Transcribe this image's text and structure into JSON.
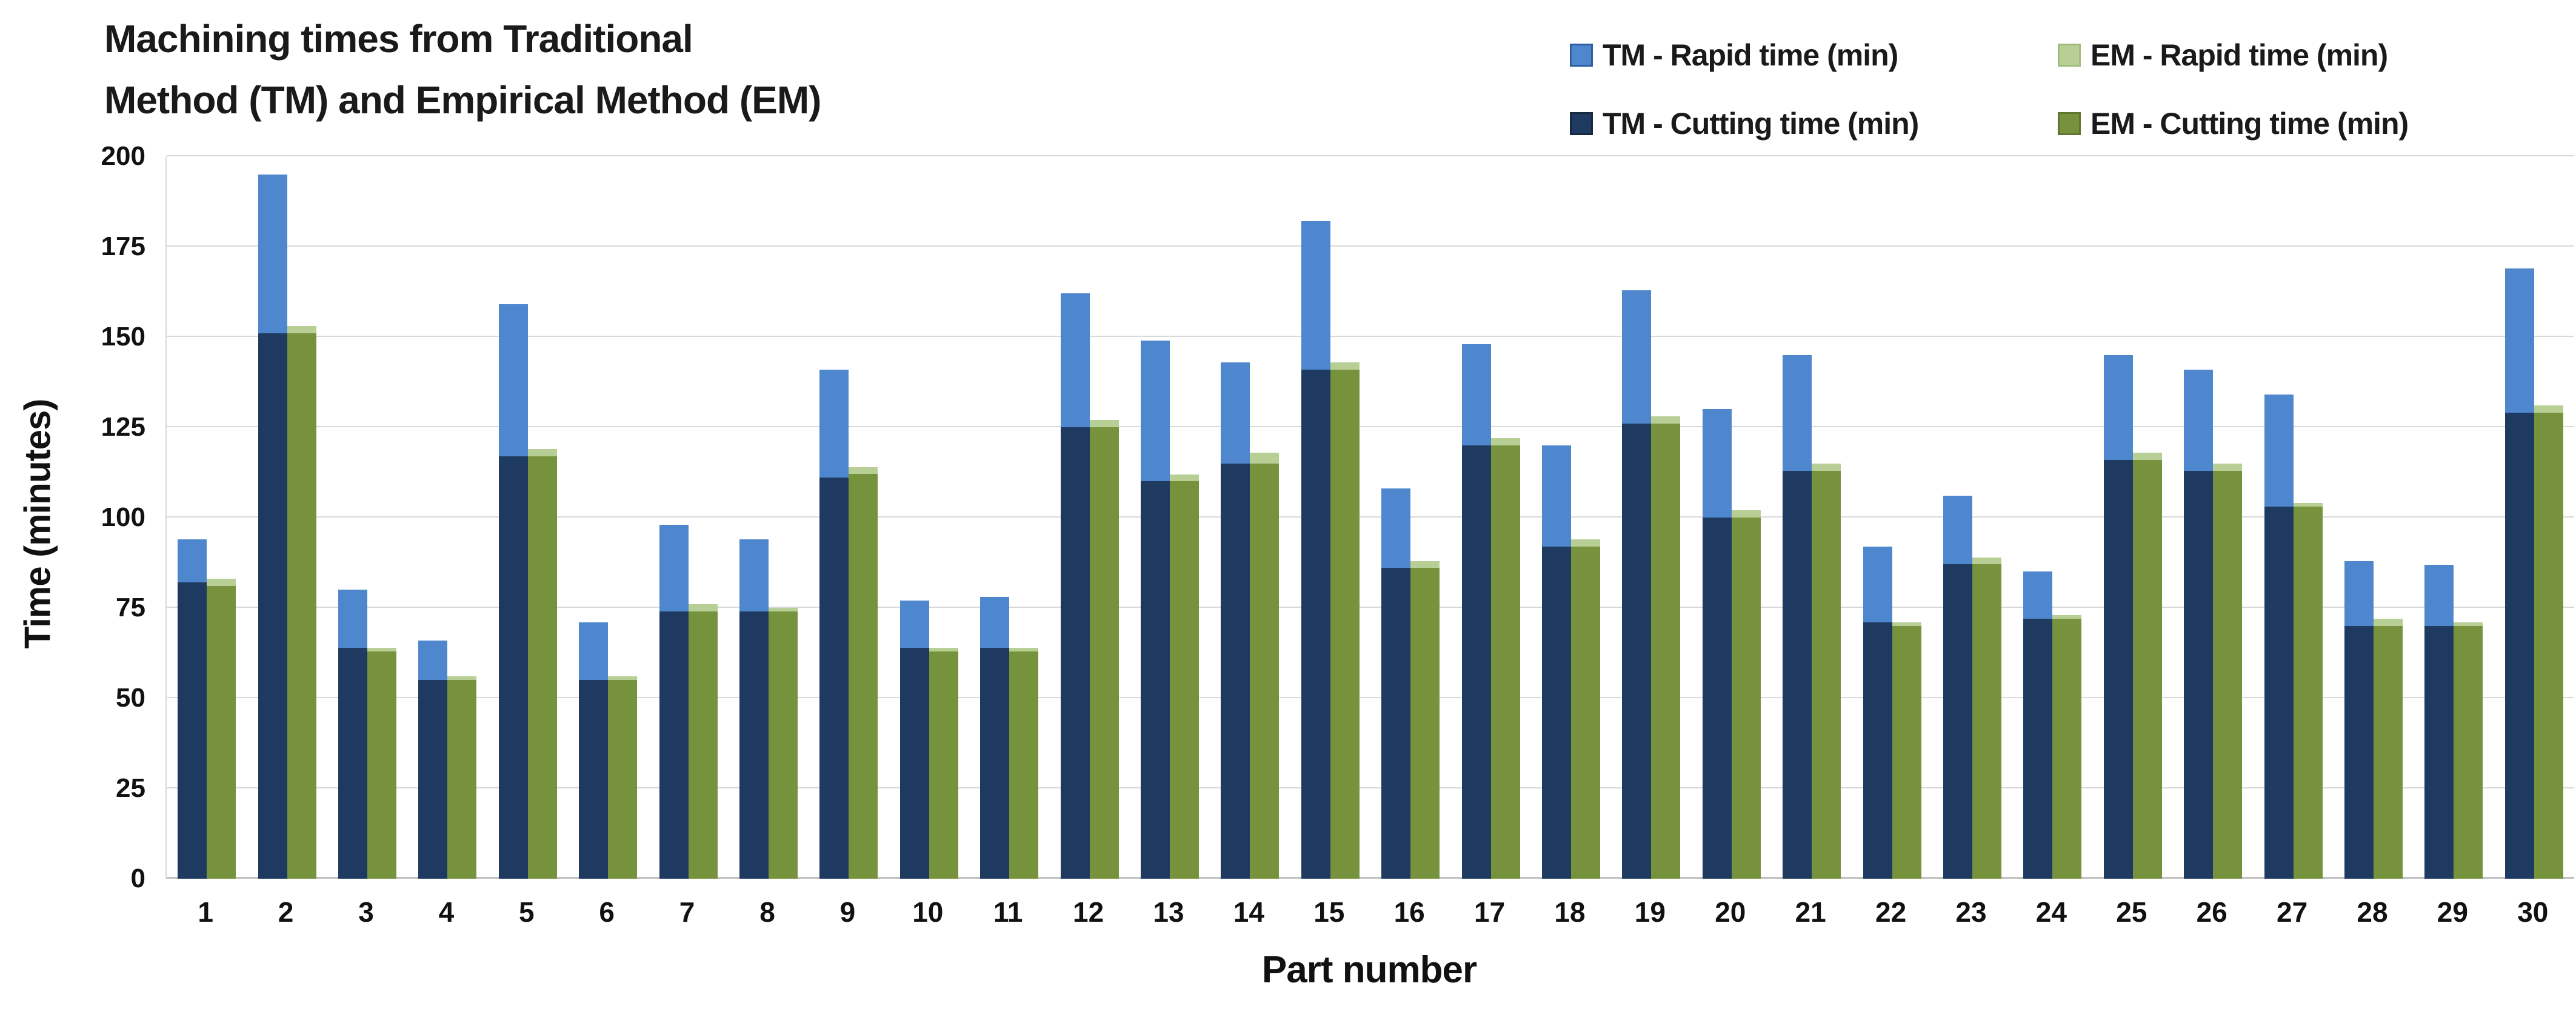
{
  "ui": {
    "title_line1": "Machining times from Traditional",
    "title_line2": "Method (TM) and Empirical Method (EM)"
  },
  "legend": {
    "items": [
      {
        "label": "TM - Rapid time (min)",
        "color": "#4e87cd",
        "border": "#2e5fa3",
        "col": 0,
        "row": 0
      },
      {
        "label": "EM - Rapid time (min)",
        "color": "#b7ce95",
        "border": "#a3bd7e",
        "col": 1,
        "row": 0
      },
      {
        "label": "TM - Cutting time (min)",
        "color": "#1f3a60",
        "border": "#16293f",
        "col": 0,
        "row": 1
      },
      {
        "label": "EM - Cutting time (min)",
        "color": "#76923c",
        "border": "#5f7530",
        "col": 1,
        "row": 1
      }
    ]
  },
  "chart_data": {
    "type": "bar",
    "subtype": "grouped-stacked-columns",
    "title": "Machining times from Traditional Method (TM) and Empirical Method (EM)",
    "xlabel": "Part number",
    "ylabel": "Time (minutes)",
    "ylim": [
      0,
      200
    ],
    "ytick_step": 25,
    "grid": true,
    "legend_position": "top-right",
    "categories": [
      1,
      2,
      3,
      4,
      5,
      6,
      7,
      8,
      9,
      10,
      11,
      12,
      13,
      14,
      15,
      16,
      17,
      18,
      19,
      20,
      21,
      22,
      23,
      24,
      25,
      26,
      27,
      28,
      29,
      30
    ],
    "series": [
      {
        "name": "TM - Cutting time (min)",
        "stack": "TM",
        "color": "#1f3a60",
        "values": [
          82,
          151,
          64,
          55,
          117,
          55,
          74,
          74,
          111,
          64,
          64,
          125,
          110,
          115,
          141,
          86,
          120,
          92,
          126,
          100,
          113,
          71,
          87,
          72,
          116,
          113,
          103,
          70,
          70,
          129
        ]
      },
      {
        "name": "TM - Rapid time (min)",
        "stack": "TM",
        "color": "#4e87cd",
        "values": [
          12,
          44,
          16,
          11,
          42,
          16,
          24,
          20,
          30,
          13,
          14,
          37,
          39,
          28,
          41,
          22,
          28,
          28,
          37,
          30,
          32,
          21,
          19,
          13,
          29,
          28,
          31,
          18,
          17,
          40
        ]
      },
      {
        "name": "EM - Cutting time (min)",
        "stack": "EM",
        "color": "#76923c",
        "values": [
          81,
          151,
          63,
          55,
          117,
          55,
          74,
          74,
          112,
          63,
          63,
          125,
          110,
          115,
          141,
          86,
          120,
          92,
          126,
          100,
          113,
          70,
          87,
          72,
          116,
          113,
          103,
          70,
          70,
          129
        ]
      },
      {
        "name": "EM - Rapid time (min)",
        "stack": "EM",
        "color": "#b7ce95",
        "values": [
          2,
          2,
          1,
          1,
          2,
          1,
          2,
          1,
          2,
          1,
          1,
          2,
          2,
          3,
          2,
          2,
          2,
          2,
          2,
          2,
          2,
          1,
          2,
          1,
          2,
          2,
          1,
          2,
          1,
          2
        ]
      }
    ]
  }
}
